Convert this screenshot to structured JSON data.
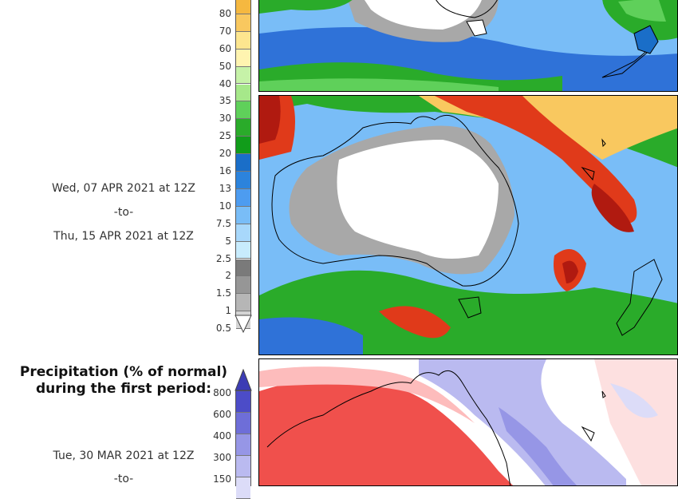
{
  "top_colorbar": {
    "ticks": [
      "80",
      "70",
      "60",
      "50",
      "40",
      "35",
      "30",
      "25",
      "20",
      "16",
      "13",
      "10",
      "7.5",
      "5",
      "2.5",
      "2",
      "1.5",
      "1",
      "0.5"
    ],
    "colors": [
      "#f5b840",
      "#f9c85f",
      "#fde68f",
      "#fff4b0",
      "#c6f2a8",
      "#a6e88a",
      "#5fd05a",
      "#2aab2a",
      "#119c1a",
      "#1a6ec8",
      "#2c83dc",
      "#4d9cf0",
      "#79bdf7",
      "#a8d8fb",
      "#c8ecfd",
      "#7a7a7a",
      "#969696",
      "#b6b6b6",
      "#d4d4d4"
    ]
  },
  "period_1": {
    "start": "Wed, 07 APR 2021 at 12Z",
    "separator": "-to-",
    "end": "Thu, 15 APR 2021 at 12Z"
  },
  "anomaly": {
    "title_line1": "Precipitation (% of normal)",
    "title_line2": "during the first period:",
    "ticks": [
      "800",
      "600",
      "400",
      "300",
      "150"
    ],
    "colors": [
      "#4c4cc8",
      "#6e6ed8",
      "#9696e6",
      "#babaf0",
      "#dcdcf8"
    ]
  },
  "period_2": {
    "start": "Tue, 30 MAR 2021 at 12Z",
    "separator": "-to-"
  }
}
